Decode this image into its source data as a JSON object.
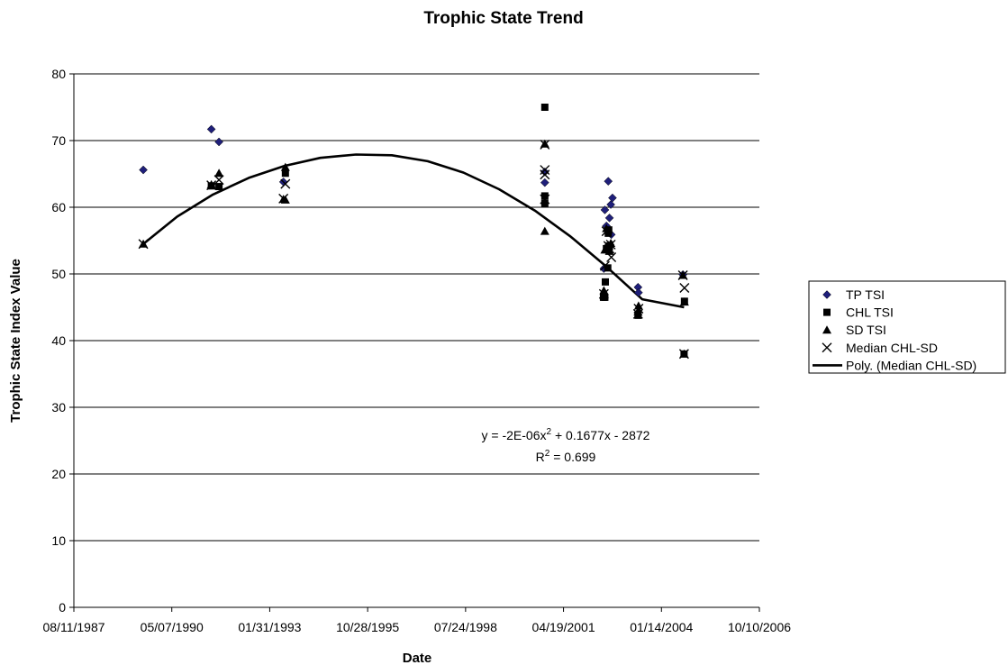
{
  "chart_data": {
    "type": "scatter",
    "title": "Trophic State Trend",
    "xlabel": "Date",
    "ylabel": "Trophic State Index Value",
    "x_axis": {
      "type": "date",
      "min": "1987-08-11",
      "max": "2006-10-10",
      "tick_labels": [
        "08/11/1987",
        "05/07/1990",
        "01/31/1993",
        "10/28/1995",
        "07/24/1998",
        "04/19/2001",
        "01/14/2004",
        "10/10/2006"
      ]
    },
    "y_axis": {
      "min": 0,
      "max": 80,
      "step": 10,
      "tick_labels": [
        "0",
        "10",
        "20",
        "30",
        "40",
        "50",
        "60",
        "70",
        "80"
      ]
    },
    "grid": "horizontal major gridlines",
    "legend_position": "right",
    "series": [
      {
        "name": "TP TSI",
        "marker": "diamond",
        "color": "#1f1f7a",
        "points": [
          [
            "1989-07-20",
            65.6
          ],
          [
            "1991-06-15",
            71.7
          ],
          [
            "1991-09-01",
            69.8
          ],
          [
            "1993-06-20",
            63.8
          ],
          [
            "2000-10-10",
            65.3
          ],
          [
            "2000-10-10",
            63.7
          ],
          [
            "2002-06-05",
            50.8
          ],
          [
            "2002-06-15",
            59.6
          ],
          [
            "2002-07-01",
            57.2
          ],
          [
            "2002-07-20",
            63.9
          ],
          [
            "2002-08-01",
            58.4
          ],
          [
            "2002-08-15",
            60.4
          ],
          [
            "2002-09-01",
            61.4
          ],
          [
            "2002-08-20",
            55.9
          ],
          [
            "2003-05-20",
            48.0
          ],
          [
            "2003-05-25",
            47.2
          ],
          [
            "2004-08-20",
            49.9
          ]
        ]
      },
      {
        "name": "CHL TSI",
        "marker": "square",
        "color": "#000000",
        "points": [
          [
            "1991-06-15",
            63.2
          ],
          [
            "1991-09-01",
            63.1
          ],
          [
            "1993-07-10",
            65.1
          ],
          [
            "2000-10-10",
            75.0
          ],
          [
            "2000-10-10",
            61.7
          ],
          [
            "2000-10-10",
            60.6
          ],
          [
            "2002-06-01",
            46.5
          ],
          [
            "2002-06-15",
            46.5
          ],
          [
            "2002-06-20",
            48.8
          ],
          [
            "2002-07-01",
            53.8
          ],
          [
            "2002-07-15",
            50.9
          ],
          [
            "2002-07-20",
            56.1
          ],
          [
            "2002-08-01",
            54.2
          ],
          [
            "2002-07-25",
            56.6
          ],
          [
            "2003-05-20",
            43.8
          ],
          [
            "2004-09-05",
            45.9
          ],
          [
            "2004-09-01",
            38.0
          ]
        ]
      },
      {
        "name": "SD TSI",
        "marker": "triangle",
        "color": "#000000",
        "points": [
          [
            "1989-07-20",
            54.5
          ],
          [
            "1991-06-15",
            63.4
          ],
          [
            "1991-09-01",
            65.1
          ],
          [
            "1993-06-20",
            61.2
          ],
          [
            "1993-07-10",
            66.0
          ],
          [
            "1993-07-10",
            61.1
          ],
          [
            "2000-10-10",
            69.5
          ],
          [
            "2000-10-10",
            56.4
          ],
          [
            "2002-06-05",
            47.5
          ],
          [
            "2002-06-15",
            53.6
          ],
          [
            "2002-07-01",
            56.8
          ],
          [
            "2002-07-20",
            54.3
          ],
          [
            "2002-08-01",
            53.4
          ],
          [
            "2002-08-15",
            54.6
          ],
          [
            "2003-05-20",
            44.3
          ],
          [
            "2003-05-25",
            45.2
          ],
          [
            "2004-08-20",
            49.8
          ],
          [
            "2004-09-05",
            45.8
          ],
          [
            "2004-09-01",
            38.0
          ]
        ]
      },
      {
        "name": "Median CHL-SD",
        "marker": "x",
        "color": "#000000",
        "points": [
          [
            "1989-07-20",
            54.5
          ],
          [
            "1991-06-15",
            63.3
          ],
          [
            "1991-09-01",
            64.1
          ],
          [
            "1993-06-20",
            61.3
          ],
          [
            "1993-07-10",
            63.5
          ],
          [
            "2000-10-10",
            69.4
          ],
          [
            "2000-10-10",
            65.6
          ],
          [
            "2000-10-10",
            64.9
          ],
          [
            "2000-10-10",
            61.2
          ],
          [
            "2002-06-05",
            47.0
          ],
          [
            "2002-06-15",
            51.2
          ],
          [
            "2002-07-01",
            56.4
          ],
          [
            "2002-07-20",
            54.2
          ],
          [
            "2002-08-01",
            53.8
          ],
          [
            "2002-08-15",
            54.4
          ],
          [
            "2002-08-20",
            52.5
          ],
          [
            "2003-05-20",
            44.0
          ],
          [
            "2003-05-25",
            44.8
          ],
          [
            "2004-08-20",
            49.8
          ],
          [
            "2004-09-05",
            47.9
          ],
          [
            "2004-09-01",
            38.0
          ]
        ]
      }
    ],
    "trendline": {
      "name": "Poly. (Median CHL-SD)",
      "type": "polynomial",
      "order": 2,
      "color": "#000000",
      "x_range": [
        "1989-07-20",
        "2004-09-01"
      ],
      "points": [
        [
          "1989-07-20",
          54.5
        ],
        [
          "1990-07-01",
          58.6
        ],
        [
          "1991-07-01",
          61.9
        ],
        [
          "1992-07-01",
          64.4
        ],
        [
          "1993-07-01",
          66.2
        ],
        [
          "1994-07-01",
          67.4
        ],
        [
          "1995-07-01",
          67.9
        ],
        [
          "1996-07-01",
          67.8
        ],
        [
          "1997-07-01",
          66.9
        ],
        [
          "1998-07-01",
          65.2
        ],
        [
          "1999-07-01",
          62.7
        ],
        [
          "2000-07-01",
          59.5
        ],
        [
          "2001-07-01",
          55.6
        ],
        [
          "2002-07-01",
          51.1
        ],
        [
          "2003-07-01",
          46.2
        ],
        [
          "2004-09-01",
          45.0
        ]
      ]
    },
    "equation": {
      "line1_a": "y = -2E-06x",
      "line1_sup": "2",
      "line1_b": " + 0.1677x - 2872",
      "line2_a": "R",
      "line2_sup": "2",
      "line2_b": " = 0.699"
    }
  }
}
